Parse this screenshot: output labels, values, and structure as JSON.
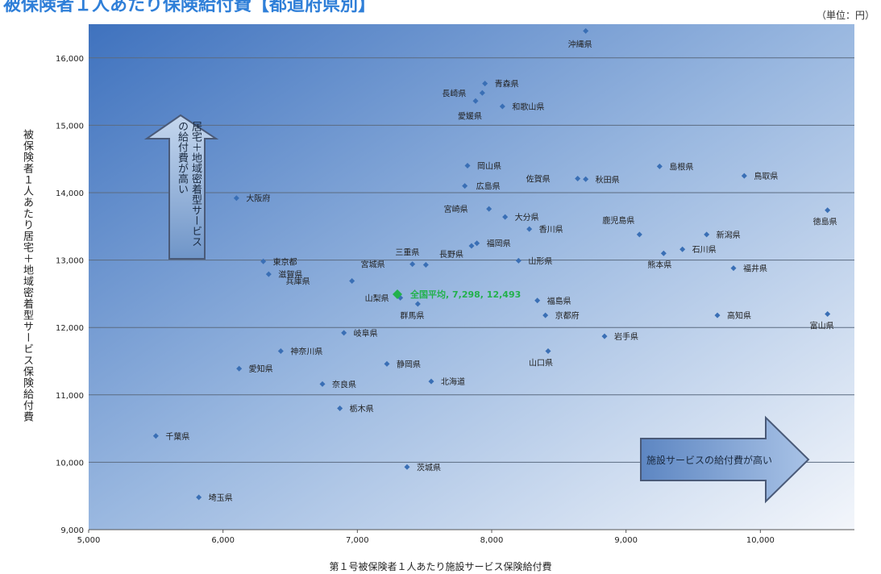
{
  "title": "被保険者１人あたり保険給付費【都道府県別】",
  "unit_label": "（単位：円）",
  "arrow_up_label": "居宅＋地域密着型サービスの給付費が高い",
  "arrow_right_label": "施設サービスの給付費が高い",
  "chart_data": {
    "type": "scatter",
    "title": "被保険者１人あたり保険給付費【都道府県別】",
    "xlabel": "第１号被保険者１人あたり施設サービス保険給付費",
    "ylabel": "被保険者１人あたり居宅＋地域密着型サービス保険給付費",
    "xlim": [
      5000,
      10700
    ],
    "ylim": [
      9000,
      16500
    ],
    "xticks": [
      5000,
      6000,
      7000,
      8000,
      9000,
      10000
    ],
    "yticks": [
      9000,
      10000,
      11000,
      12000,
      13000,
      14000,
      15000,
      16000
    ],
    "xtick_labels": [
      "5,000",
      "6,000",
      "7,000",
      "8,000",
      "9,000",
      "10,000"
    ],
    "ytick_labels": [
      "9,000",
      "10,000",
      "11,000",
      "12,000",
      "13,000",
      "14,000",
      "15,000",
      "16,000"
    ],
    "grid": "horizontal",
    "colors": {
      "point": "#3a6fb5",
      "average": "#22b14c",
      "text": "#222222"
    },
    "points": [
      {
        "name": "沖縄県",
        "x": 8700,
        "y": 16400
      },
      {
        "name": "青森県",
        "x": 7950,
        "y": 15620
      },
      {
        "name": "長崎県",
        "x": 7930,
        "y": 15480
      },
      {
        "name": "和歌山県",
        "x": 8080,
        "y": 15280
      },
      {
        "name": "愛媛県",
        "x": 7880,
        "y": 15360
      },
      {
        "name": "岡山県",
        "x": 7820,
        "y": 14400
      },
      {
        "name": "佐賀県",
        "x": 8640,
        "y": 14210
      },
      {
        "name": "秋田県",
        "x": 8700,
        "y": 14200
      },
      {
        "name": "島根県",
        "x": 9250,
        "y": 14390
      },
      {
        "name": "鳥取県",
        "x": 9880,
        "y": 14250
      },
      {
        "name": "広島県",
        "x": 7800,
        "y": 14100
      },
      {
        "name": "大阪府",
        "x": 6100,
        "y": 13920
      },
      {
        "name": "宮崎県",
        "x": 7980,
        "y": 13760
      },
      {
        "name": "大分県",
        "x": 8100,
        "y": 13640
      },
      {
        "name": "香川県",
        "x": 8280,
        "y": 13460
      },
      {
        "name": "鹿児島県",
        "x": 9100,
        "y": 13380
      },
      {
        "name": "新潟県",
        "x": 9600,
        "y": 13380
      },
      {
        "name": "徳島県",
        "x": 10500,
        "y": 13740
      },
      {
        "name": "石川県",
        "x": 9420,
        "y": 13160
      },
      {
        "name": "熊本県",
        "x": 9280,
        "y": 13100
      },
      {
        "name": "福岡県",
        "x": 7890,
        "y": 13250
      },
      {
        "name": "長野県",
        "x": 7850,
        "y": 13210
      },
      {
        "name": "三重県",
        "x": 7510,
        "y": 12930
      },
      {
        "name": "宮城県",
        "x": 7410,
        "y": 12940
      },
      {
        "name": "山形県",
        "x": 8200,
        "y": 12990
      },
      {
        "name": "福井県",
        "x": 9800,
        "y": 12880
      },
      {
        "name": "東京都",
        "x": 6300,
        "y": 12980
      },
      {
        "name": "滋賀県",
        "x": 6340,
        "y": 12790
      },
      {
        "name": "兵庫県",
        "x": 6960,
        "y": 12690
      },
      {
        "name": "山梨県",
        "x": 7320,
        "y": 12440
      },
      {
        "name": "群馬県",
        "x": 7450,
        "y": 12350
      },
      {
        "name": "福島県",
        "x": 8340,
        "y": 12400
      },
      {
        "name": "京都府",
        "x": 8400,
        "y": 12180
      },
      {
        "name": "高知県",
        "x": 9680,
        "y": 12180
      },
      {
        "name": "富山県",
        "x": 10500,
        "y": 12200
      },
      {
        "name": "岩手県",
        "x": 8840,
        "y": 11870
      },
      {
        "name": "岐阜県",
        "x": 6900,
        "y": 11920
      },
      {
        "name": "神奈川県",
        "x": 6430,
        "y": 11650
      },
      {
        "name": "山口県",
        "x": 8420,
        "y": 11650
      },
      {
        "name": "静岡県",
        "x": 7220,
        "y": 11460
      },
      {
        "name": "愛知県",
        "x": 6120,
        "y": 11390
      },
      {
        "name": "北海道",
        "x": 7550,
        "y": 11200
      },
      {
        "name": "奈良県",
        "x": 6740,
        "y": 11160
      },
      {
        "name": "栃木県",
        "x": 6870,
        "y": 10800
      },
      {
        "name": "千葉県",
        "x": 5500,
        "y": 10390
      },
      {
        "name": "茨城県",
        "x": 7370,
        "y": 9930
      },
      {
        "name": "埼玉県",
        "x": 5820,
        "y": 9480
      }
    ],
    "average": {
      "label": "全国平均, 7,298, 12,493",
      "x": 7298,
      "y": 12493
    }
  }
}
